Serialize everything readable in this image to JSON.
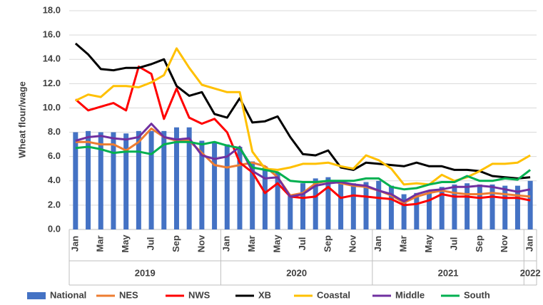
{
  "chart_data": {
    "type": "bar_line",
    "y_label": "Wheat flour/wage",
    "categories": [
      "Jan",
      null,
      "Mar",
      null,
      "May",
      null,
      "Jul",
      null,
      "Sep",
      null,
      "Nov",
      null,
      "Jan",
      null,
      "Mar",
      null,
      "May",
      null,
      "Jul",
      null,
      "Sep",
      null,
      "Nov",
      null,
      "Jan",
      null,
      "Mar",
      null,
      "May",
      null,
      "Jul",
      null,
      "Sep",
      null,
      "Nov",
      null,
      "Jan"
    ],
    "years": [
      "2019",
      "2020",
      "2021",
      "2022"
    ],
    "ylim": [
      0,
      18
    ],
    "yticks": [
      {
        "value": 0,
        "label": "0.0"
      },
      {
        "value": 2,
        "label": "2.0"
      },
      {
        "value": 4,
        "label": "4.0"
      },
      {
        "value": 6,
        "label": "6.0"
      },
      {
        "value": 8,
        "label": "8.0"
      },
      {
        "value": 10,
        "label": "10.0"
      },
      {
        "value": 12,
        "label": "12.0"
      },
      {
        "value": 14,
        "label": "14.0"
      },
      {
        "value": 16,
        "label": "16.0"
      },
      {
        "value": 18,
        "label": "18.0"
      }
    ],
    "grid": true,
    "legend": "bottom",
    "series": [
      {
        "name": "National",
        "kind": "bar",
        "color": "#4472c4",
        "values": [
          8.0,
          8.1,
          8.0,
          8.0,
          7.9,
          8.1,
          8.1,
          8.1,
          8.4,
          8.4,
          7.3,
          7.2,
          7.0,
          6.8,
          5.6,
          5.2,
          4.7,
          2.8,
          3.8,
          4.2,
          4.3,
          3.9,
          3.8,
          3.9,
          4.0,
          3.6,
          2.9,
          3.0,
          3.2,
          3.5,
          3.7,
          3.8,
          3.7,
          3.7,
          3.6,
          3.6,
          4.0
        ]
      },
      {
        "name": "NES",
        "kind": "line",
        "color": "#ed7d31",
        "values": [
          7.2,
          7.2,
          7.0,
          7.0,
          6.5,
          7.2,
          8.3,
          7.6,
          7.3,
          7.3,
          6.3,
          5.3,
          5.1,
          5.3,
          5.5,
          5.2,
          4.3,
          2.8,
          3.0,
          3.8,
          4.0,
          3.8,
          3.6,
          3.5,
          3.2,
          2.8,
          2.2,
          2.7,
          3.0,
          3.2,
          3.0,
          2.9,
          2.9,
          3.0,
          2.9,
          2.8,
          2.7
        ]
      },
      {
        "name": "NWS",
        "kind": "line",
        "color": "#ff0000",
        "values": [
          10.7,
          9.8,
          10.1,
          10.4,
          9.8,
          13.4,
          12.8,
          9.1,
          11.6,
          9.2,
          8.7,
          9.1,
          8.0,
          5.5,
          4.7,
          3.0,
          3.8,
          2.7,
          2.6,
          2.7,
          3.5,
          2.6,
          2.8,
          2.7,
          2.6,
          2.5,
          2.0,
          2.1,
          2.4,
          2.9,
          2.7,
          2.7,
          2.6,
          2.7,
          2.6,
          2.6,
          2.4
        ]
      },
      {
        "name": "XB",
        "kind": "line",
        "color": "#000000",
        "values": [
          15.3,
          14.4,
          13.2,
          13.1,
          13.3,
          13.3,
          13.6,
          14.0,
          11.8,
          11.0,
          11.3,
          9.5,
          9.2,
          10.8,
          8.8,
          8.9,
          9.3,
          7.6,
          6.2,
          6.1,
          6.5,
          5.1,
          4.9,
          5.5,
          5.4,
          5.3,
          5.2,
          5.5,
          5.2,
          5.2,
          4.9,
          4.9,
          4.8,
          4.4,
          4.3,
          4.2,
          4.3
        ]
      },
      {
        "name": "Coastal",
        "kind": "line",
        "color": "#ffc000",
        "values": [
          10.6,
          11.1,
          10.9,
          11.8,
          11.8,
          11.7,
          12.1,
          12.7,
          14.9,
          13.3,
          11.9,
          11.6,
          11.3,
          11.3,
          6.4,
          5.0,
          4.9,
          5.1,
          5.4,
          5.4,
          5.5,
          5.2,
          5.0,
          6.1,
          5.7,
          5.0,
          3.7,
          3.8,
          3.7,
          4.5,
          4.0,
          4.3,
          4.8,
          5.4,
          5.4,
          5.5,
          6.1
        ]
      },
      {
        "name": "Middle",
        "kind": "line",
        "color": "#7030a0",
        "values": [
          7.3,
          7.6,
          7.7,
          7.5,
          7.4,
          7.6,
          8.7,
          7.6,
          7.4,
          7.5,
          6.1,
          5.8,
          6.0,
          6.8,
          4.8,
          4.2,
          4.3,
          2.7,
          2.9,
          3.6,
          3.8,
          3.9,
          3.7,
          3.6,
          3.2,
          2.9,
          2.3,
          2.9,
          3.2,
          3.3,
          3.5,
          3.5,
          3.6,
          3.5,
          3.3,
          3.1,
          3.3
        ]
      },
      {
        "name": "South",
        "kind": "line",
        "color": "#00b050",
        "values": [
          6.7,
          6.8,
          6.6,
          6.3,
          6.4,
          6.4,
          6.2,
          7.0,
          7.2,
          7.2,
          7.0,
          7.2,
          6.9,
          6.7,
          5.1,
          4.9,
          4.7,
          4.0,
          3.9,
          3.9,
          4.0,
          4.0,
          4.0,
          4.2,
          4.2,
          3.5,
          3.3,
          3.4,
          3.7,
          3.9,
          3.9,
          4.4,
          4.0,
          4.0,
          4.2,
          4.1,
          4.9
        ]
      }
    ]
  }
}
